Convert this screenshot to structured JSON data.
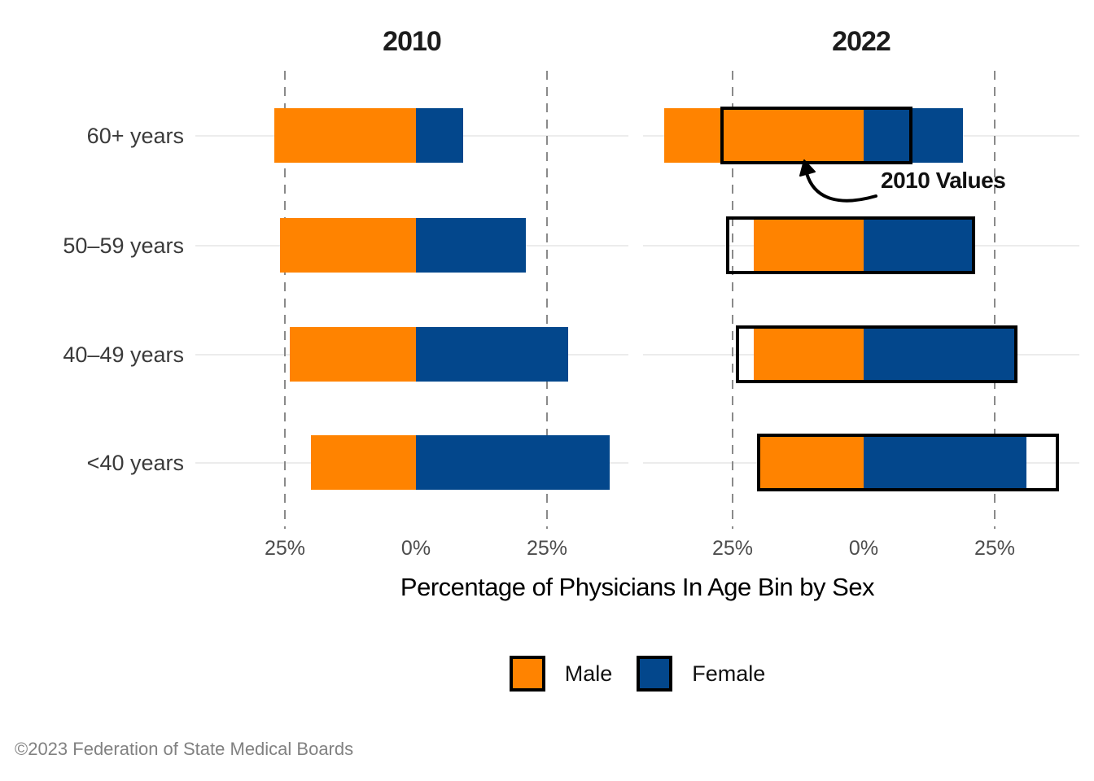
{
  "facet_titles": [
    "2010",
    "2022"
  ],
  "y_axis": {
    "categories": [
      "60+ years",
      "50–59 years",
      "40–49 years",
      "<40 years"
    ]
  },
  "x_axis": {
    "tick_labels": [
      "25%",
      "0%",
      "25%"
    ],
    "title": "Percentage of Physicians In Age Bin by Sex"
  },
  "legend": {
    "items": [
      {
        "label": "Male",
        "color": "#FF8300"
      },
      {
        "label": "Female",
        "color": "#03478C"
      }
    ]
  },
  "annotation": {
    "label": "2010 Values"
  },
  "footer": {
    "text": "©2023 Federation of State Medical Boards"
  },
  "colors": {
    "male": "#FF8300",
    "female": "#03478C",
    "outline": "#000000",
    "dashed_grid": "#8A8A8A",
    "light_grid": "#ECECEC"
  },
  "chart_data": {
    "type": "bar",
    "subtype": "diverging stacked horizontal bars, faceted by year; males extend left of 0, females right",
    "title": "",
    "xlabel": "Percentage of Physicians In Age Bin by Sex",
    "categories": [
      "60+ years",
      "50–59 years",
      "40–49 years",
      "<40 years"
    ],
    "x_breaks_pct": [
      -25,
      0,
      25
    ],
    "xlim_pct": [
      -42,
      41
    ],
    "grid": "dashed vertical gridlines at ±25%, faint horizontal line at each category",
    "legend_position": "bottom",
    "facets": [
      {
        "name": "2010",
        "series": [
          {
            "name": "Male",
            "side": "left",
            "values": [
              27,
              26,
              24,
              20
            ]
          },
          {
            "name": "Female",
            "side": "right",
            "values": [
              9,
              21,
              29,
              37
            ]
          }
        ]
      },
      {
        "name": "2022",
        "series": [
          {
            "name": "Male",
            "side": "left",
            "values": [
              38,
              21,
              21,
              20
            ]
          },
          {
            "name": "Female",
            "side": "right",
            "values": [
              19,
              21,
              29,
              31
            ]
          }
        ],
        "overlay_outline": {
          "label": "2010 Values",
          "male_values": [
            27,
            26,
            24,
            20
          ],
          "female_values": [
            9,
            21,
            29,
            37
          ]
        }
      }
    ]
  }
}
